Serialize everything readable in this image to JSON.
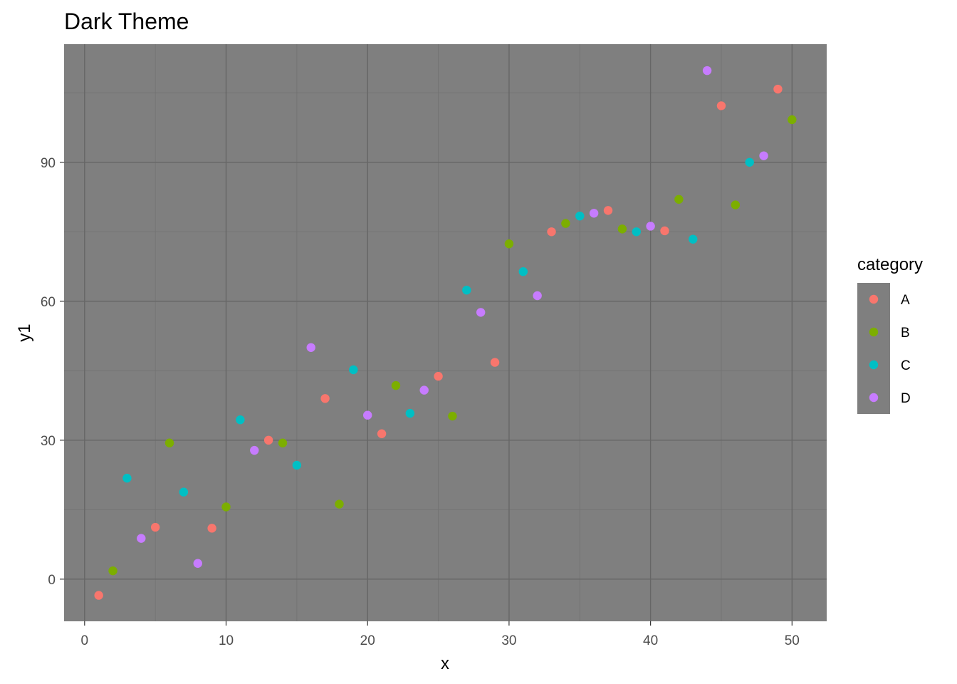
{
  "chart_data": {
    "type": "scatter",
    "title": "Dark Theme",
    "xlabel": "x",
    "ylabel": "y1",
    "xlim": [
      -1.45,
      52.45
    ],
    "ylim": [
      -9.1,
      115.5
    ],
    "x_ticks": [
      0,
      10,
      20,
      30,
      40,
      50
    ],
    "y_ticks": [
      0,
      30,
      60,
      90
    ],
    "x_tick_labels": [
      "0",
      "10",
      "20",
      "30",
      "40",
      "50"
    ],
    "y_tick_labels": [
      "0",
      "30",
      "60",
      "90"
    ],
    "grid": true,
    "panel_background": "#7f7f7f",
    "legend": {
      "title": "category",
      "placement": "right",
      "entries": [
        {
          "label": "A",
          "color": "#F8766D"
        },
        {
          "label": "B",
          "color": "#7CAE00"
        },
        {
          "label": "C",
          "color": "#00BFC4"
        },
        {
          "label": "D",
          "color": "#C77CFF"
        }
      ]
    },
    "series": [
      {
        "name": "A",
        "color": "#F8766D",
        "points": [
          {
            "x": 1,
            "y": -3.5
          },
          {
            "x": 5,
            "y": 11.2
          },
          {
            "x": 9,
            "y": 11.0
          },
          {
            "x": 13,
            "y": 30.0
          },
          {
            "x": 17,
            "y": 39.0
          },
          {
            "x": 21,
            "y": 31.4
          },
          {
            "x": 25,
            "y": 43.8
          },
          {
            "x": 29,
            "y": 46.8
          },
          {
            "x": 33,
            "y": 75.0
          },
          {
            "x": 37,
            "y": 79.6
          },
          {
            "x": 41,
            "y": 75.2
          },
          {
            "x": 45,
            "y": 102.2
          },
          {
            "x": 49,
            "y": 105.8
          }
        ]
      },
      {
        "name": "B",
        "color": "#7CAE00",
        "points": [
          {
            "x": 2,
            "y": 1.8
          },
          {
            "x": 6,
            "y": 29.4
          },
          {
            "x": 10,
            "y": 15.6
          },
          {
            "x": 14,
            "y": 29.4
          },
          {
            "x": 18,
            "y": 16.2
          },
          {
            "x": 22,
            "y": 41.8
          },
          {
            "x": 26,
            "y": 35.2
          },
          {
            "x": 30,
            "y": 72.4
          },
          {
            "x": 34,
            "y": 76.8
          },
          {
            "x": 38,
            "y": 75.6
          },
          {
            "x": 42,
            "y": 82.0
          },
          {
            "x": 46,
            "y": 80.8
          },
          {
            "x": 50,
            "y": 99.2
          }
        ]
      },
      {
        "name": "C",
        "color": "#00BFC4",
        "points": [
          {
            "x": 3,
            "y": 21.8
          },
          {
            "x": 7,
            "y": 18.8
          },
          {
            "x": 11,
            "y": 34.4
          },
          {
            "x": 15,
            "y": 24.6
          },
          {
            "x": 19,
            "y": 45.2
          },
          {
            "x": 23,
            "y": 35.8
          },
          {
            "x": 27,
            "y": 62.4
          },
          {
            "x": 31,
            "y": 66.4
          },
          {
            "x": 35,
            "y": 78.4
          },
          {
            "x": 39,
            "y": 75.0
          },
          {
            "x": 43,
            "y": 73.4
          },
          {
            "x": 47,
            "y": 90.0
          }
        ]
      },
      {
        "name": "D",
        "color": "#C77CFF",
        "points": [
          {
            "x": 4,
            "y": 8.8
          },
          {
            "x": 8,
            "y": 3.4
          },
          {
            "x": 12,
            "y": 27.8
          },
          {
            "x": 16,
            "y": 50.0
          },
          {
            "x": 20,
            "y": 35.4
          },
          {
            "x": 24,
            "y": 40.8
          },
          {
            "x": 28,
            "y": 57.6
          },
          {
            "x": 32,
            "y": 61.2
          },
          {
            "x": 36,
            "y": 79.0
          },
          {
            "x": 40,
            "y": 76.2
          },
          {
            "x": 44,
            "y": 109.8
          },
          {
            "x": 48,
            "y": 91.4
          }
        ]
      }
    ]
  }
}
